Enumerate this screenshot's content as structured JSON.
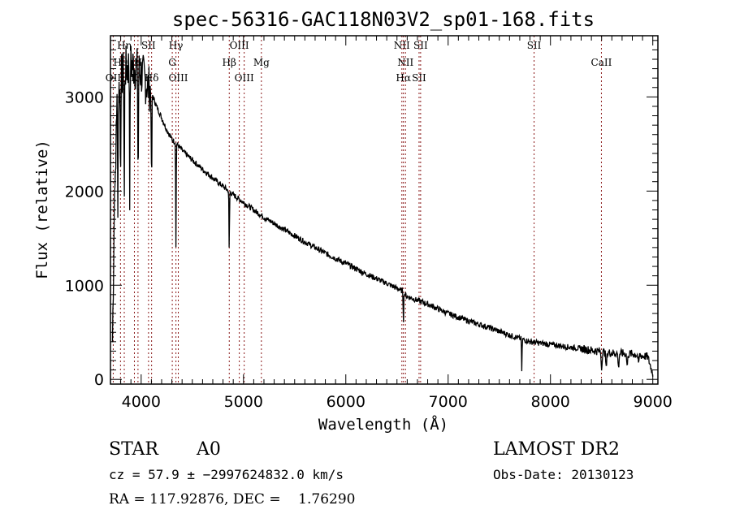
{
  "chart_data": {
    "type": "line",
    "title": "spec-56316-GAC118N03V2_sp01-168.fits",
    "xlabel": "Wavelength (Å)",
    "ylabel": "Flux (relative)",
    "xlim": [
      3700,
      9050
    ],
    "ylim": [
      -50,
      3650
    ],
    "grid": false,
    "x_ticks": [
      4000,
      5000,
      6000,
      7000,
      8000,
      9000
    ],
    "x_tick_labels": [
      "4000",
      "5000",
      "6000",
      "7000",
      "8000",
      "9000"
    ],
    "y_ticks": [
      0,
      1000,
      2000,
      3000
    ],
    "y_tick_labels": [
      "0",
      "1000",
      "2000",
      "3000"
    ],
    "continuum_points": [
      [
        3720,
        400
      ],
      [
        3750,
        2800
      ],
      [
        3800,
        3200
      ],
      [
        3850,
        3300
      ],
      [
        3900,
        3350
      ],
      [
        3950,
        3300
      ],
      [
        4000,
        3250
      ],
      [
        4050,
        3150
      ],
      [
        4100,
        3050
      ],
      [
        4150,
        2900
      ],
      [
        4200,
        2780
      ],
      [
        4250,
        2650
      ],
      [
        4300,
        2550
      ],
      [
        4350,
        2500
      ],
      [
        4400,
        2430
      ],
      [
        4500,
        2330
      ],
      [
        4600,
        2230
      ],
      [
        4700,
        2140
      ],
      [
        4800,
        2050
      ],
      [
        4900,
        1960
      ],
      [
        5000,
        1880
      ],
      [
        5200,
        1720
      ],
      [
        5400,
        1590
      ],
      [
        5600,
        1460
      ],
      [
        5800,
        1340
      ],
      [
        6000,
        1230
      ],
      [
        6200,
        1120
      ],
      [
        6400,
        1020
      ],
      [
        6550,
        940
      ],
      [
        6600,
        880
      ],
      [
        6800,
        800
      ],
      [
        7000,
        700
      ],
      [
        7200,
        620
      ],
      [
        7400,
        550
      ],
      [
        7600,
        470
      ],
      [
        7800,
        400
      ],
      [
        8000,
        370
      ],
      [
        8200,
        340
      ],
      [
        8400,
        310
      ],
      [
        8600,
        280
      ],
      [
        8800,
        270
      ],
      [
        8950,
        240
      ],
      [
        9000,
        60
      ]
    ],
    "absorption_features": [
      {
        "wavelength": 3750,
        "depth_to": 1700
      },
      {
        "wavelength": 3771,
        "depth_to": 1600
      },
      {
        "wavelength": 3798,
        "depth_to": 1800
      },
      {
        "wavelength": 3835,
        "depth_to": 1500
      },
      {
        "wavelength": 3889,
        "depth_to": 1600
      },
      {
        "wavelength": 3970,
        "depth_to": 1650
      },
      {
        "wavelength": 4102,
        "depth_to": 1650
      },
      {
        "wavelength": 4340,
        "depth_to": 1400
      },
      {
        "wavelength": 4861,
        "depth_to": 1200
      },
      {
        "wavelength": 6563,
        "depth_to": 550
      },
      {
        "wavelength": 7720,
        "depth_to": 60
      },
      {
        "wavelength": 8500,
        "depth_to": 100
      },
      {
        "wavelength": 8545,
        "depth_to": 80
      },
      {
        "wavelength": 8665,
        "depth_to": 90
      },
      {
        "wavelength": 8750,
        "depth_to": 110
      },
      {
        "wavelength": 8860,
        "depth_to": 140
      }
    ],
    "line_markers": [
      {
        "label": "OII",
        "wavelength": 3727,
        "row": 3
      },
      {
        "label": "Hθ",
        "wavelength": 3798,
        "row": 2
      },
      {
        "label": "Hη",
        "wavelength": 3835,
        "row": 1
      },
      {
        "label": "K",
        "wavelength": 3934,
        "row": 3
      },
      {
        "label": "H",
        "wavelength": 3969,
        "row": 2
      },
      {
        "label": "SII",
        "wavelength": 4072,
        "row": 1
      },
      {
        "label": "Hδ",
        "wavelength": 4102,
        "row": 3
      },
      {
        "label": "Hγ",
        "wavelength": 4340,
        "row": 1
      },
      {
        "label": "G",
        "wavelength": 4304,
        "row": 2
      },
      {
        "label": "OIII",
        "wavelength": 4363,
        "row": 3
      },
      {
        "label": "Hβ",
        "wavelength": 4861,
        "row": 2
      },
      {
        "label": "OIII",
        "wavelength": 4959,
        "row": 1
      },
      {
        "label": "OIII",
        "wavelength": 5007,
        "row": 3
      },
      {
        "label": "Mg",
        "wavelength": 5175,
        "row": 2
      },
      {
        "label": "NII",
        "wavelength": 6548,
        "row": 1
      },
      {
        "label": "NII",
        "wavelength": 6583,
        "row": 2
      },
      {
        "label": "Hα",
        "wavelength": 6563,
        "row": 3
      },
      {
        "label": "SII",
        "wavelength": 6716,
        "row": 3
      },
      {
        "label": "SII",
        "wavelength": 6731,
        "row": 0
      },
      {
        "label": "SII",
        "wavelength": 7840,
        "row": 1
      },
      {
        "label": "CaII",
        "wavelength": 8498,
        "row": 2
      }
    ],
    "marker_color": "#8b1a1a",
    "line_color": "#000000"
  },
  "info": {
    "object_class": "STAR",
    "subclass": "A0",
    "redshift_line": "cz = 57.9 ± −2997624832.0 km/s",
    "coords_line": "RA = 117.92876, DEC =    1.76290",
    "survey": "LAMOST DR2",
    "obs_date": "Obs-Date: 20130123"
  }
}
